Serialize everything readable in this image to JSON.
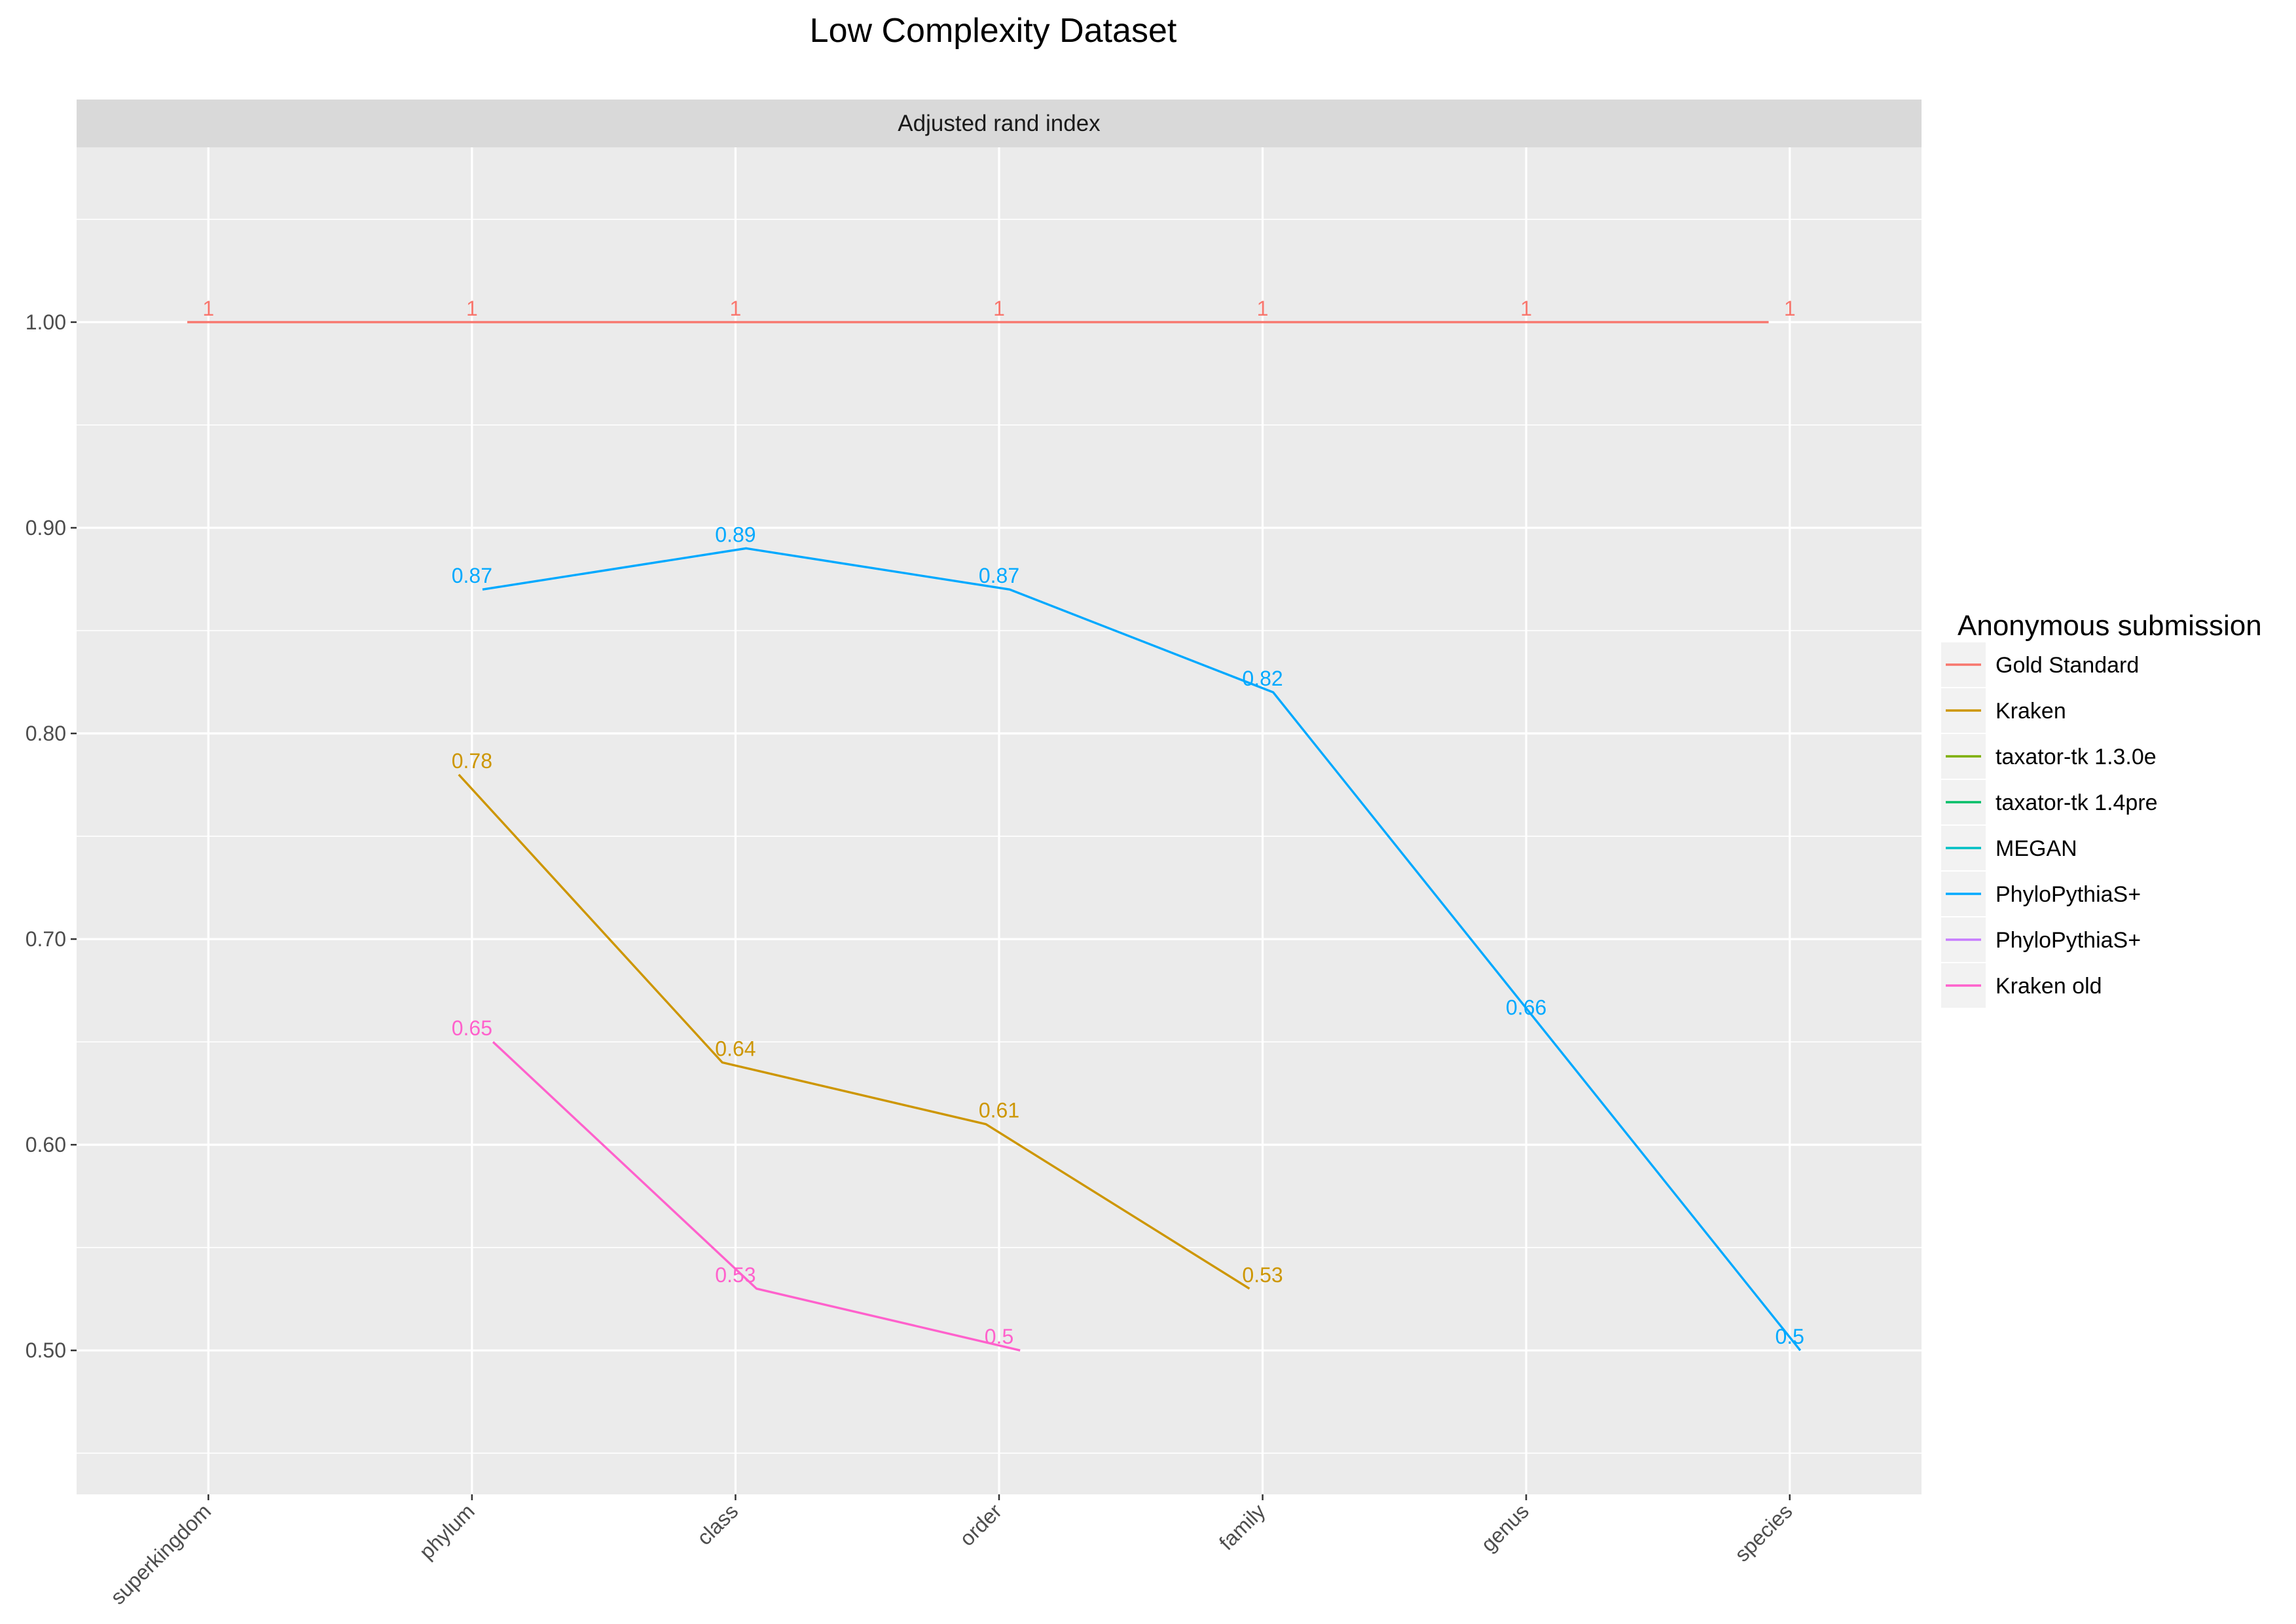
{
  "chart_data": {
    "type": "line",
    "title": "Low Complexity Dataset",
    "facet_label": "Adjusted rand index",
    "xlabel": "",
    "ylabel": "",
    "categories": [
      "superkingdom",
      "phylum",
      "class",
      "order",
      "family",
      "genus",
      "species"
    ],
    "ylim": [
      0.43,
      1.085
    ],
    "yticks": [
      "0.50",
      "0.60",
      "0.70",
      "0.80",
      "0.90",
      "1.00"
    ],
    "grid": true,
    "legend": {
      "title": "Anonymous submission",
      "position": "right",
      "entries": [
        "Gold Standard",
        "Kraken",
        "taxator-tk 1.3.0e",
        "taxator-tk 1.4pre",
        "MEGAN",
        "PhyloPythiaS+",
        "PhyloPythiaS+",
        "Kraken old"
      ]
    },
    "series": [
      {
        "name": "Gold Standard",
        "color": "#F8766D",
        "dodge": -0.08,
        "points": [
          [
            "superkingdom",
            1
          ],
          [
            "phylum",
            1
          ],
          [
            "class",
            1
          ],
          [
            "order",
            1
          ],
          [
            "family",
            1
          ],
          [
            "genus",
            1
          ],
          [
            "species",
            1
          ]
        ],
        "labels": [
          "1",
          "1",
          "1",
          "1",
          "1",
          "1",
          "1"
        ]
      },
      {
        "name": "Kraken",
        "color": "#CD9600",
        "dodge": -0.05,
        "points": [
          [
            "phylum",
            0.78
          ],
          [
            "class",
            0.64
          ],
          [
            "order",
            0.61
          ],
          [
            "family",
            0.53
          ]
        ],
        "labels": [
          "0.78",
          "0.64",
          "0.61",
          "0.53"
        ]
      },
      {
        "name": "taxator-tk 1.3.0e",
        "color": "#7CAE00",
        "dodge": 0,
        "points": [],
        "labels": []
      },
      {
        "name": "taxator-tk 1.4pre",
        "color": "#00BE67",
        "dodge": 0,
        "points": [],
        "labels": []
      },
      {
        "name": "MEGAN",
        "color": "#00BFC4",
        "dodge": 0,
        "points": [],
        "labels": []
      },
      {
        "name": "PhyloPythiaS+",
        "color": "#00A9FF",
        "dodge": 0.04,
        "points": [
          [
            "phylum",
            0.87
          ],
          [
            "class",
            0.89
          ],
          [
            "order",
            0.87
          ],
          [
            "family",
            0.82
          ],
          [
            "genus",
            0.66
          ],
          [
            "species",
            0.5
          ]
        ],
        "labels": [
          "0.87",
          "0.89",
          "0.87",
          "0.82",
          "0.66",
          "0.5"
        ]
      },
      {
        "name": "PhyloPythiaS+",
        "color": "#C77CFF",
        "dodge": 0,
        "points": [],
        "labels": []
      },
      {
        "name": "Kraken old",
        "color": "#FF61CC",
        "dodge": 0.08,
        "points": [
          [
            "phylum",
            0.65
          ],
          [
            "class",
            0.53
          ],
          [
            "order",
            0.5
          ]
        ],
        "labels": [
          "0.65",
          "0.53",
          "0.5"
        ]
      }
    ]
  }
}
